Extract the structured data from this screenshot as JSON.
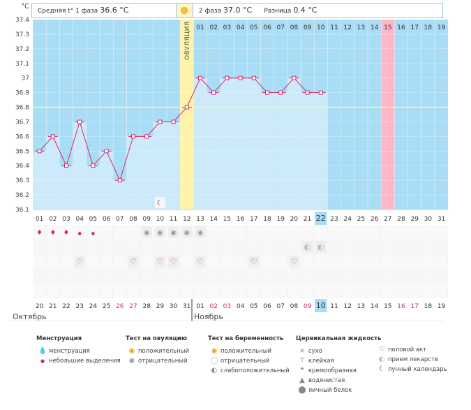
{
  "header": {
    "phase1_label": "Средняя t° 1 фаза",
    "phase1_value": "36.6 °C",
    "phase2_label": "2 фаза",
    "phase2_value": "37.0 °C",
    "diff_label": "Разница",
    "diff_value": "0.4 °C",
    "y_unit": "°C",
    "ovulation_label": "ОВУЛЯЦИЯ"
  },
  "months": {
    "left": "Октябрь",
    "right": "Ноябрь"
  },
  "chart_data": {
    "type": "line",
    "title": "",
    "ylabel": "°C",
    "ylim": [
      36.1,
      37.4
    ],
    "yticks": [
      "36.1",
      "36.2",
      "36.3",
      "36.4",
      "36.5",
      "36.6",
      "36.7",
      "36.8",
      "36.9",
      "37",
      "37.1",
      "37.2",
      "37.3",
      "37.4"
    ],
    "cycle_days": [
      "01",
      "02",
      "03",
      "04",
      "05",
      "06",
      "07",
      "08",
      "09",
      "10",
      "11",
      "12",
      "13",
      "14",
      "15",
      "16",
      "17",
      "18",
      "19",
      "20",
      "21",
      "22",
      "23",
      "24",
      "25",
      "26",
      "27",
      "28",
      "29",
      "30",
      "31"
    ],
    "calendar_dates": [
      "20",
      "21",
      "22",
      "23",
      "24",
      "25",
      "26",
      "27",
      "28",
      "29",
      "30",
      "31",
      "01",
      "02",
      "03",
      "04",
      "05",
      "06",
      "07",
      "08",
      "09",
      "10",
      "11",
      "12",
      "13",
      "14",
      "15",
      "16",
      "17",
      "18",
      "19"
    ],
    "calendar_red": [
      false,
      false,
      false,
      false,
      false,
      false,
      true,
      true,
      false,
      false,
      false,
      false,
      false,
      true,
      true,
      false,
      false,
      false,
      false,
      false,
      true,
      false,
      false,
      false,
      false,
      false,
      false,
      true,
      true,
      false,
      false
    ],
    "phase2_days": [
      "01",
      "02",
      "03",
      "04",
      "05",
      "06",
      "07",
      "08",
      "09",
      "10",
      "11",
      "12",
      "13",
      "14",
      "15",
      "16",
      "17",
      "18",
      "19"
    ],
    "temperatures": [
      36.5,
      36.6,
      36.4,
      36.7,
      36.4,
      36.5,
      36.3,
      36.6,
      36.6,
      36.7,
      36.7,
      36.8,
      37.0,
      36.9,
      37.0,
      37.0,
      37.0,
      36.9,
      36.9,
      37.0,
      36.9,
      36.9
    ],
    "coverline": 36.8,
    "ovulation_day_index": 11,
    "current_day_index": 21,
    "highlight_phase2_day_index": 14,
    "moon_day_index": 9,
    "menstruation_days": [
      0,
      1,
      2
    ],
    "light_spotting_days": [
      3,
      4
    ],
    "ovulation_test_negative_days": [
      8,
      9,
      10,
      11,
      12
    ],
    "pregnancy_test_weak_days": [
      20,
      21
    ],
    "intercourse_days": [
      3,
      7,
      9,
      10,
      12,
      16,
      19
    ]
  },
  "legend": {
    "menstruation": {
      "title": "Менструация",
      "items": [
        "менструация",
        "небольшие выделения"
      ]
    },
    "ovulation_test": {
      "title": "Тест на овуляцию",
      "items": [
        "положительный",
        "отрицательный"
      ]
    },
    "pregnancy_test": {
      "title": "Тест на беременность",
      "items": [
        "положительный",
        "отрицательный",
        "слабоположительный"
      ]
    },
    "cervical": {
      "title": "Цервикальная жидкость",
      "items": [
        "сухо",
        "клейкая",
        "кремообразная",
        "водянистая",
        "яичный белок"
      ]
    },
    "other": {
      "items": [
        "половой акт",
        "прием лекарств",
        "лунный календарь"
      ]
    }
  },
  "colors": {
    "plot_bg": "#a9dcf5",
    "bar": "#cdeafb",
    "line": "#d6286e",
    "ovulation": "#fff3a8",
    "highlight": "#ffb6c8",
    "today": "#a9dcf5",
    "red_date": "#d6286e"
  }
}
